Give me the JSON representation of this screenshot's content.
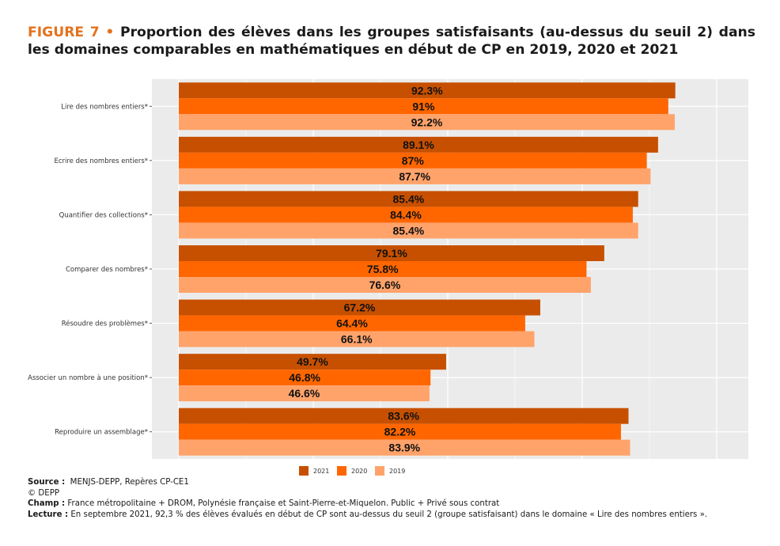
{
  "title": {
    "figure_label": "FIGURE 7 •",
    "text": "Proportion des élèves dans les groupes satisfaisants (au-dessus du seuil 2) dans les domaines comparables en mathématiques en début de CP en 2019, 2020 et 2021"
  },
  "chart_data": {
    "type": "bar",
    "orientation": "horizontal",
    "categories": [
      "Lire des nombres entiers*",
      "Ecrire des nombres entiers*",
      "Quantifier des collections*",
      "Comparer des nombres*",
      "Résoudre des problèmes*",
      "Associer un nombre à une position*",
      "Reproduire un assemblage*"
    ],
    "series": [
      {
        "name": "2021",
        "color": "#c75000",
        "values": [
          92.3,
          89.1,
          85.4,
          79.1,
          67.2,
          49.7,
          83.6
        ],
        "labels": [
          "92.3%",
          "89.1%",
          "85.4%",
          "79.1%",
          "67.2%",
          "49.7%",
          "83.6%"
        ]
      },
      {
        "name": "2020",
        "color": "#ff6600",
        "values": [
          91,
          87,
          84.4,
          75.8,
          64.4,
          46.8,
          82.2
        ],
        "labels": [
          "91%",
          "87%",
          "84.4%",
          "75.8%",
          "64.4%",
          "46.8%",
          "82.2%"
        ]
      },
      {
        "name": "2019",
        "color": "#ffa36b",
        "values": [
          92.2,
          87.7,
          85.4,
          76.6,
          66.1,
          46.6,
          83.9
        ],
        "labels": [
          "92.2%",
          "87.7%",
          "85.4%",
          "76.6%",
          "66.1%",
          "46.6%",
          "83.9%"
        ]
      }
    ],
    "xlim": [
      0,
      100
    ],
    "grid": true,
    "legend": "bottom",
    "background": "#ebebeb"
  },
  "notes": {
    "source_label": "Source :",
    "source_text": "MENJS-DEPP, Repères CP-CE1",
    "copyright": "© DEPP",
    "champ_label": "Champ :",
    "champ_text": "France métropolitaine + DROM, Polynésie française et Saint-Pierre-et-Miquelon. Public + Privé sous contrat",
    "lecture_label": "Lecture :",
    "lecture_text": "En septembre 2021, 92,3 % des élèves évalués en début de CP sont au-dessus du seuil 2 (groupe satisfaisant) dans le domaine « Lire des nombres entiers »."
  }
}
